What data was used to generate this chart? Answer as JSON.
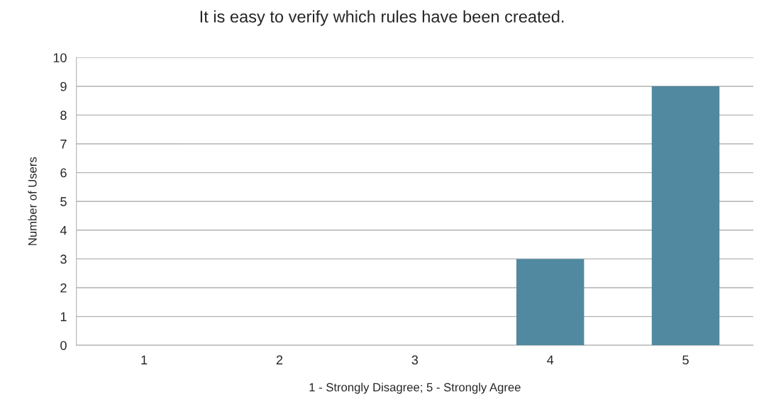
{
  "chart_data": {
    "type": "bar",
    "title": "It is easy to verify which rules have been created.",
    "xlabel": "1 - Strongly Disagree; 5 - Strongly Agree",
    "ylabel": "Number of Users",
    "categories": [
      "1",
      "2",
      "3",
      "4",
      "5"
    ],
    "values": [
      0,
      0,
      0,
      3,
      9
    ],
    "color": "#5089a0",
    "ylim": [
      0,
      10
    ],
    "yticks": [
      0,
      1,
      2,
      3,
      4,
      5,
      6,
      7,
      8,
      9,
      10
    ],
    "grid": "y",
    "legend": false
  }
}
